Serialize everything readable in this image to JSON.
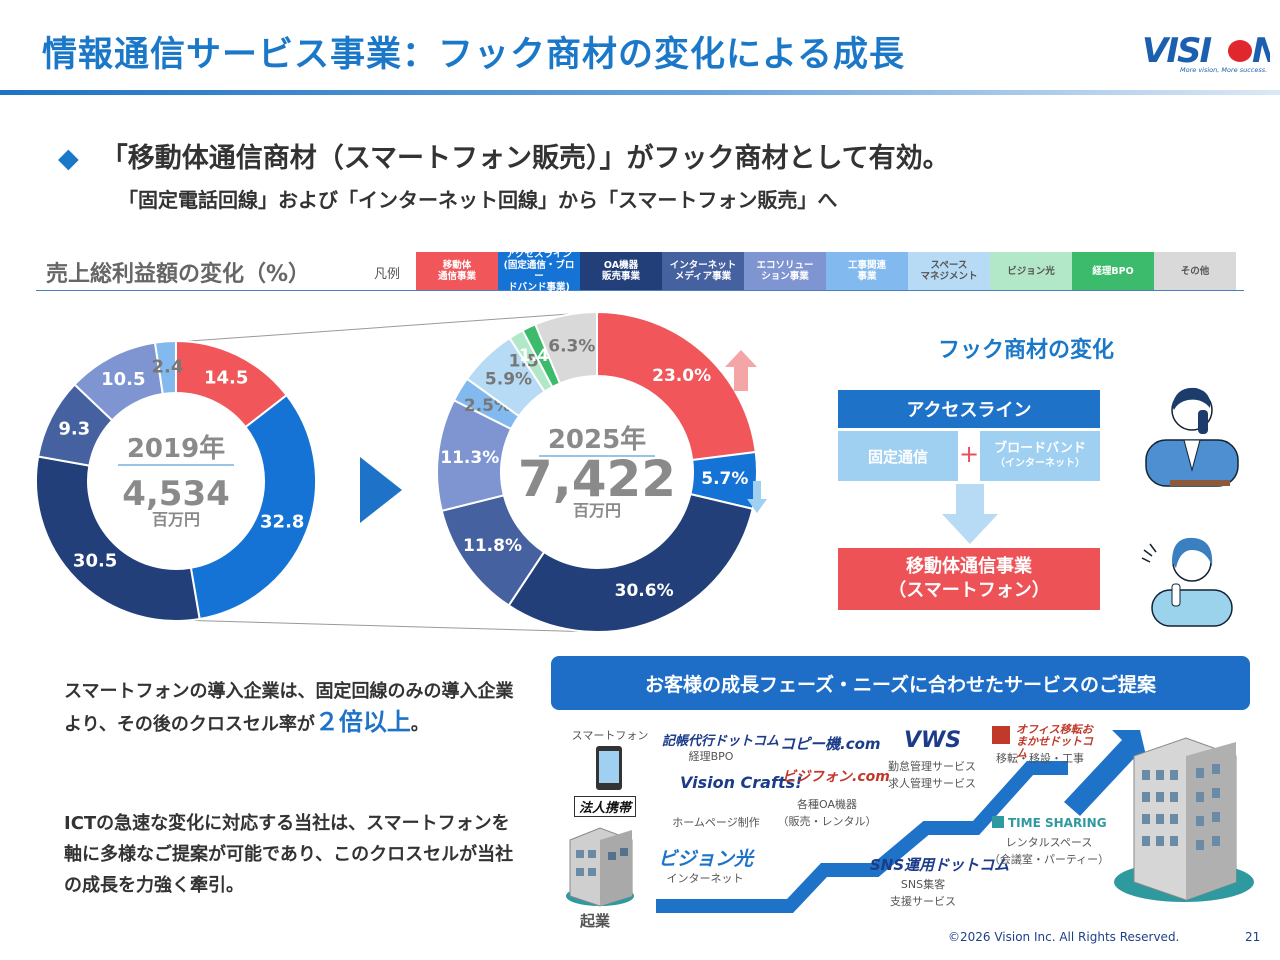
{
  "header": {
    "title": "情報通信サービス事業：フック商材の変化による成長",
    "logo_text": "VISION",
    "logo_tagline": "More vision, More success."
  },
  "headline": {
    "main": "「移動体通信商材（スマートフォン販売）」がフック商材として有効。",
    "sub": "「固定電話回線」および「インターネット回線」から「スマートフォン販売」へ"
  },
  "chart_section": {
    "title": "売上総利益額の変化（%）",
    "legend_label": "凡例",
    "legend": [
      {
        "name": "移動体\n通信事業",
        "color": "#f0565a"
      },
      {
        "name": "アクセスライン\n(固定通信・ブロー\nドバンド事業)",
        "color": "#1673d6"
      },
      {
        "name": "OA機器\n販売事業",
        "color": "#223f7a"
      },
      {
        "name": "インターネット\nメディア事業",
        "color": "#46619f"
      },
      {
        "name": "エコソリュー\nション事業",
        "color": "#7f95d2"
      },
      {
        "name": "工事関連\n事業",
        "color": "#82b9ee"
      },
      {
        "name": "スペース\nマネジメント",
        "color": "#b7daf5"
      },
      {
        "name": "ビジョン光",
        "color": "#b2e8c7"
      },
      {
        "name": "経理BPO",
        "color": "#3dbb6c"
      },
      {
        "name": "その他",
        "color": "#d9d9d9"
      }
    ]
  },
  "chart_data": [
    {
      "type": "pie",
      "donut": true,
      "center_year": "2019年",
      "center_value": "4,534",
      "center_unit": "百万円",
      "slices": [
        {
          "series": "移動体通信事業",
          "value": 14.5,
          "label": "14.5"
        },
        {
          "series": "アクセスライン",
          "value": 32.8,
          "label": "32.8"
        },
        {
          "series": "OA機器販売事業",
          "value": 30.5,
          "label": "30.5"
        },
        {
          "series": "インターネットメディア事業",
          "value": 9.3,
          "label": "9.3"
        },
        {
          "series": "エコソリューション事業",
          "value": 10.5,
          "label": "10.5"
        },
        {
          "series": "工事関連事業",
          "value": 2.4,
          "label": "2.4"
        }
      ]
    },
    {
      "type": "pie",
      "donut": true,
      "center_year": "2025年",
      "center_value": "7,422",
      "center_unit": "百万円",
      "slices": [
        {
          "series": "移動体通信事業",
          "value": 23.0,
          "label": "23.0%"
        },
        {
          "series": "アクセスライン",
          "value": 5.7,
          "label": "5.7%"
        },
        {
          "series": "OA機器販売事業",
          "value": 30.6,
          "label": "30.6%"
        },
        {
          "series": "インターネットメディア事業",
          "value": 11.8,
          "label": "11.8%"
        },
        {
          "series": "エコソリューション事業",
          "value": 11.3,
          "label": "11.3%"
        },
        {
          "series": "工事関連事業",
          "value": 2.5,
          "label": "2.5%"
        },
        {
          "series": "スペースマネジメント",
          "value": 5.9,
          "label": "5.9%"
        },
        {
          "series": "ビジョン光",
          "value": 1.5,
          "label": "1.5%"
        },
        {
          "series": "経理BPO",
          "value": 1.4,
          "label": "1.4%"
        },
        {
          "series": "その他",
          "value": 6.3,
          "label": "6.3%"
        }
      ]
    }
  ],
  "hook": {
    "title": "フック商材の変化",
    "access_line": "アクセスライン",
    "fixed": "固定通信",
    "plus": "+",
    "broadband": "ブロードバンド",
    "broadband_sub": "（インターネット）",
    "mobile": "移動体通信事業",
    "mobile_sub": "（スマートフォン）"
  },
  "text_block": {
    "p1_a": "スマートフォンの導入企業は、固定回線のみの導入企業より、その後のクロスセル率が",
    "p1_em": "２倍以上",
    "p1_b": "。",
    "p2": "ICTの急速な変化に対応する当社は、スマートフォンを軸に多様なご提案が可能であり、このクロスセルが当社の成長を力強く牽引。"
  },
  "growth": {
    "banner": "お客様の成長フェーズ・ニーズに合わせたサービスのご提案",
    "start_label": "起業",
    "items": [
      {
        "brand": "",
        "label": "スマートフォン"
      },
      {
        "brand": "法人携帯",
        "label": ""
      },
      {
        "brand": "ビジョン光",
        "label": "インターネット"
      },
      {
        "brand": "記帳代行ドットコム",
        "label": "経理BPO"
      },
      {
        "brand": "Vision Crafts!",
        "label": "ホームページ制作"
      },
      {
        "brand": "コピー機.com",
        "label": ""
      },
      {
        "brand": "ビジフォン.com",
        "label": "各種OA機器\n（販売・レンタル）"
      },
      {
        "brand": "VWS",
        "label": "勤怠管理サービス\n求人管理サービス"
      },
      {
        "brand": "SNS運用ドットコム",
        "label": "SNS集客\n支援サービス"
      },
      {
        "brand": "オフィス移転おまかせドットコム",
        "label": "移転・移設・工事"
      },
      {
        "brand": "TIME SHARING",
        "label": "レンタルスペース\n（会議室・パーティー）"
      }
    ]
  },
  "footer": {
    "copyright": "©2026 Vision Inc. All Rights Reserved.",
    "page": "21"
  }
}
